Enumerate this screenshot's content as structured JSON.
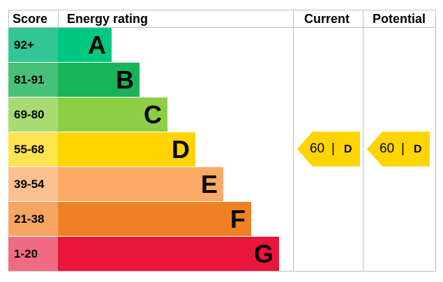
{
  "headers": {
    "score": "Score",
    "rating": "Energy rating",
    "current": "Current",
    "potential": "Potential"
  },
  "chart_data": {
    "type": "bar",
    "bands": [
      {
        "letter": "A",
        "score": "92+",
        "color": "#00c781",
        "score_color": "#33c695"
      },
      {
        "letter": "B",
        "score": "81-91",
        "color": "#19b459",
        "score_color": "#47c07a"
      },
      {
        "letter": "C",
        "score": "69-80",
        "color": "#8dce46",
        "score_color": "#a8db74"
      },
      {
        "letter": "D",
        "score": "55-68",
        "color": "#ffd500",
        "score_color": "#ffe34f"
      },
      {
        "letter": "E",
        "score": "39-54",
        "color": "#fcaa65",
        "score_color": "#fdc190"
      },
      {
        "letter": "F",
        "score": "21-38",
        "color": "#ef8023",
        "score_color": "#f5a663"
      },
      {
        "letter": "G",
        "score": "1-20",
        "color": "#e9153b",
        "score_color": "#f06b82"
      }
    ],
    "current": {
      "value": "60",
      "separator": "|",
      "band": "D",
      "color": "#ffd500"
    },
    "potential": {
      "value": "60",
      "separator": "|",
      "band": "D",
      "color": "#ffd500"
    }
  }
}
